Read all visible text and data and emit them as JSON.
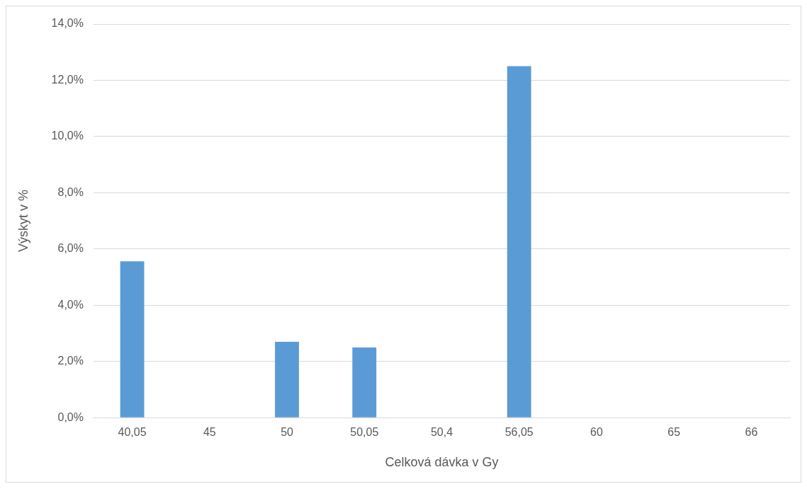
{
  "chart_data": {
    "type": "bar",
    "xlabel": "Celková dávka v Gy",
    "ylabel": "Výskyt v %",
    "categories": [
      "40,05",
      "45",
      "50",
      "50,05",
      "50,4",
      "56,05",
      "60",
      "65",
      "66"
    ],
    "values": [
      5.56,
      0,
      2.7,
      2.5,
      0,
      12.5,
      0,
      0,
      0
    ],
    "color": "#5b9bd5",
    "ylim": [
      0,
      14
    ],
    "yticks": [
      {
        "value": 0,
        "label": "0,0%"
      },
      {
        "value": 2,
        "label": "2,0%"
      },
      {
        "value": 4,
        "label": "4,0%"
      },
      {
        "value": 6,
        "label": "6,0%"
      },
      {
        "value": 8,
        "label": "8,0%"
      },
      {
        "value": 10,
        "label": "10,0%"
      },
      {
        "value": 12,
        "label": "12,0%"
      },
      {
        "value": 14,
        "label": "14,0%"
      }
    ],
    "grid": "y",
    "legend": false
  }
}
